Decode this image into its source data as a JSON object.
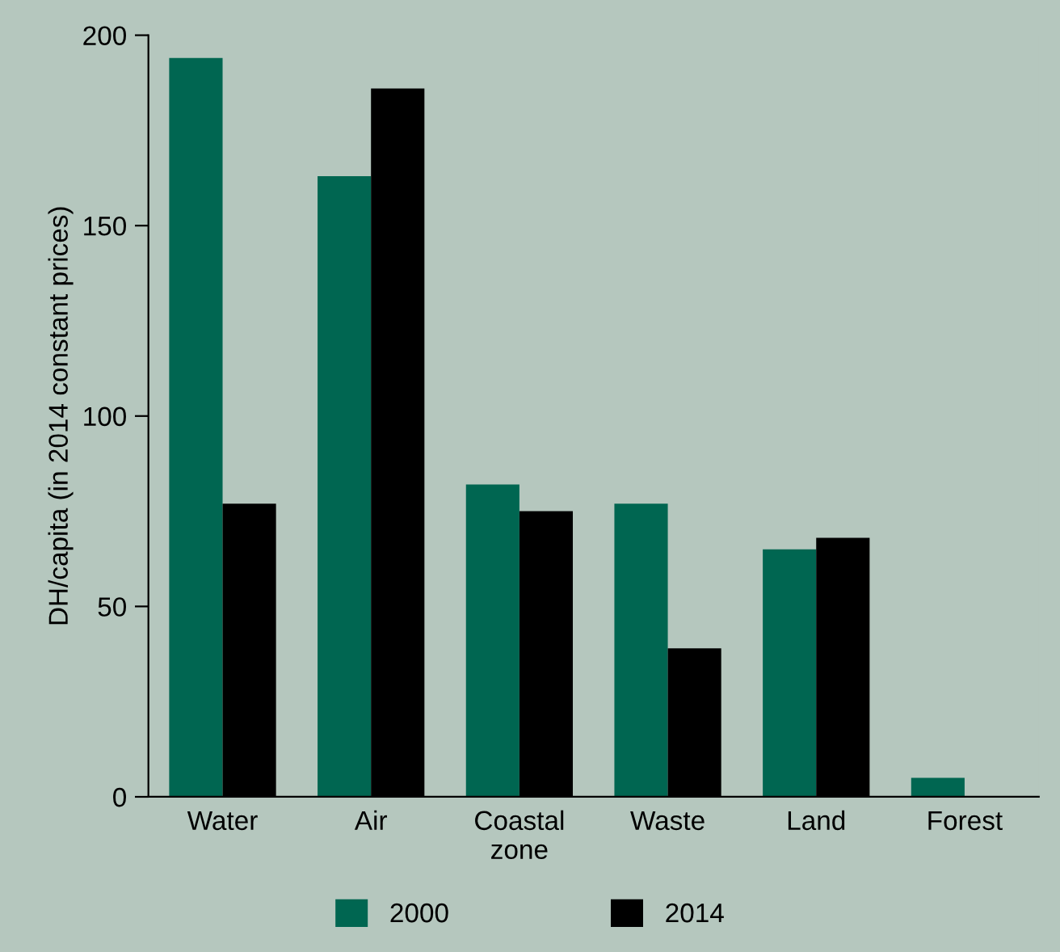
{
  "chart_data": {
    "type": "bar",
    "ylabel": "DH/capita (in 2014 constant prices)",
    "categories": [
      "Water",
      "Air",
      "Coastal\nzone",
      "Waste",
      "Land",
      "Forest"
    ],
    "series": [
      {
        "name": "2000",
        "color": "#006651",
        "values": [
          194,
          163,
          82,
          77,
          65,
          5
        ]
      },
      {
        "name": "2014",
        "color": "#000000",
        "values": [
          77,
          186,
          75,
          39,
          68,
          0
        ]
      }
    ],
    "ylim": [
      0,
      200
    ],
    "yticks": [
      0,
      50,
      100,
      150,
      200
    ],
    "grid": false,
    "legend": "bottom"
  }
}
